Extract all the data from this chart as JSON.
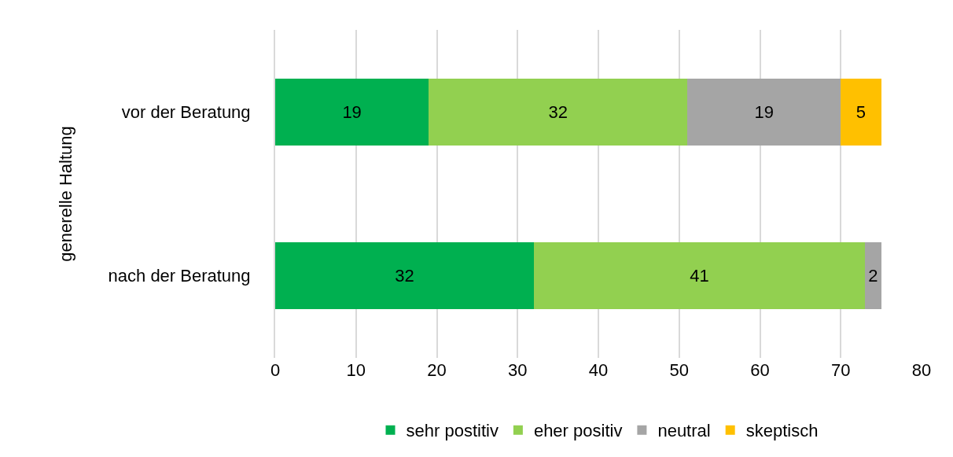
{
  "chart_data": {
    "type": "bar",
    "orientation": "horizontal",
    "stacked": true,
    "ylabel": "generelle Haltung",
    "categories": [
      "vor der Beratung",
      "nach der Beratung"
    ],
    "series": [
      {
        "name": "sehr postitiv",
        "color": "#00b050",
        "values": [
          19,
          32
        ]
      },
      {
        "name": "eher positiv",
        "color": "#92d050",
        "values": [
          32,
          41
        ]
      },
      {
        "name": "neutral",
        "color": "#a5a5a5",
        "values": [
          19,
          2
        ]
      },
      {
        "name": "skeptisch",
        "color": "#ffc000",
        "values": [
          5,
          null
        ]
      }
    ],
    "xlim": [
      0,
      80
    ],
    "xticks": [
      0,
      10,
      20,
      30,
      40,
      50,
      60,
      70,
      80
    ],
    "grid": "x",
    "legend": "bottom",
    "data_labels": true
  }
}
